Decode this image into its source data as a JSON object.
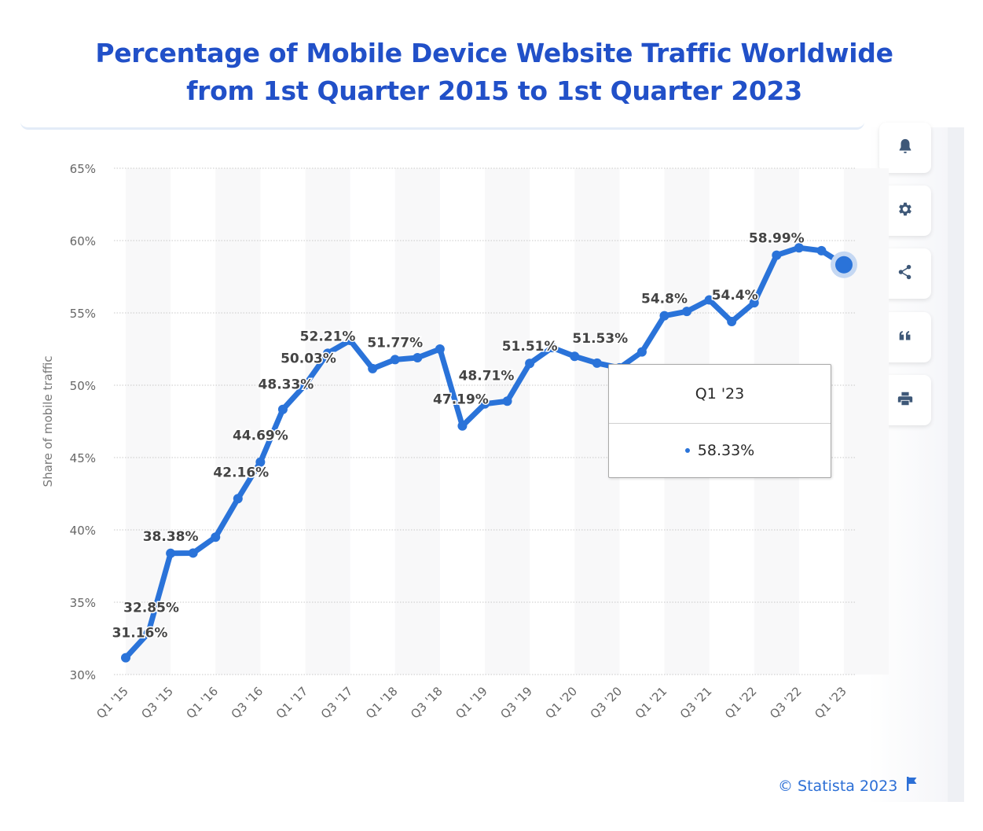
{
  "title_lines": [
    "Percentage of Mobile Device Website Traffic Worldwide",
    "from 1st Quarter 2015 to 1st Quarter 2023"
  ],
  "colors": {
    "title": "#2150c8",
    "series": "#2a73d9",
    "axis_text": "#666666",
    "data_label": "#444444",
    "link": "#2c6fd6"
  },
  "side_buttons": [
    {
      "name": "notification",
      "icon": "bell-icon"
    },
    {
      "name": "settings",
      "icon": "gear-icon"
    },
    {
      "name": "share",
      "icon": "share-icon"
    },
    {
      "name": "cite",
      "icon": "quote-icon"
    },
    {
      "name": "print",
      "icon": "printer-icon"
    }
  ],
  "footer": {
    "copyright": "© Statista 2023",
    "flag_icon": "flag-icon"
  },
  "tooltip": {
    "category": "Q1 '23",
    "value": "58.33%"
  },
  "chart_data": {
    "type": "line",
    "title": "Percentage of Mobile Device Website Traffic Worldwide from 1st Quarter 2015 to 1st Quarter 2023",
    "xlabel": "",
    "ylabel": "Share of mobile traffic",
    "ylim": [
      30,
      65
    ],
    "yticks": [
      30,
      35,
      40,
      45,
      50,
      55,
      60,
      65
    ],
    "ytick_labels": [
      "30%",
      "35%",
      "40%",
      "45%",
      "50%",
      "55%",
      "60%",
      "65%"
    ],
    "grid": true,
    "legend": "none",
    "categories": [
      "Q1 '15",
      "Q2 '15",
      "Q3 '15",
      "Q4 '15",
      "Q1 '16",
      "Q2 '16",
      "Q3 '16",
      "Q4 '16",
      "Q1 '17",
      "Q2 '17",
      "Q3 '17",
      "Q4 '17",
      "Q1 '18",
      "Q2 '18",
      "Q3 '18",
      "Q4 '18",
      "Q1 '19",
      "Q2 '19",
      "Q3 '19",
      "Q4 '19",
      "Q1 '20",
      "Q2 '20",
      "Q3 '20",
      "Q4 '20",
      "Q1 '21",
      "Q2 '21",
      "Q3 '21",
      "Q4 '21",
      "Q1 '22",
      "Q2 '22",
      "Q3 '22",
      "Q4 '22",
      "Q1 '23"
    ],
    "xtick_labels": [
      "Q1 '15",
      "Q3 '15",
      "Q1 '16",
      "Q3 '16",
      "Q1 '17",
      "Q3 '17",
      "Q1 '18",
      "Q3 '18",
      "Q1 '19",
      "Q3 '19",
      "Q1 '20",
      "Q3 '20",
      "Q1 '21",
      "Q3 '21",
      "Q1 '22",
      "Q3 '22",
      "Q1 '23"
    ],
    "series": [
      {
        "name": "Share of mobile traffic",
        "values": [
          31.16,
          32.85,
          38.38,
          38.4,
          39.5,
          42.16,
          44.69,
          48.33,
          50.03,
          52.21,
          53.1,
          51.15,
          51.77,
          51.9,
          52.5,
          47.19,
          48.71,
          48.9,
          51.51,
          52.6,
          52.0,
          51.53,
          51.2,
          52.3,
          54.8,
          55.1,
          55.9,
          54.4,
          55.7,
          58.99,
          59.5,
          59.3,
          58.33
        ]
      }
    ],
    "data_labels": [
      {
        "index": 0,
        "text": "31.16%"
      },
      {
        "index": 1,
        "text": "32.85%"
      },
      {
        "index": 2,
        "text": "38.38%"
      },
      {
        "index": 5,
        "text": "42.16%"
      },
      {
        "index": 6,
        "text": "44.69%"
      },
      {
        "index": 7,
        "text": "48.33%"
      },
      {
        "index": 8,
        "text": "50.03%"
      },
      {
        "index": 9,
        "text": "52.21%"
      },
      {
        "index": 12,
        "text": "51.77%"
      },
      {
        "index": 15,
        "text": "47.19%"
      },
      {
        "index": 16,
        "text": "48.71%"
      },
      {
        "index": 18,
        "text": "51.51%"
      },
      {
        "index": 21,
        "text": "51.53%"
      },
      {
        "index": 24,
        "text": "54.8%"
      },
      {
        "index": 27,
        "text": "54.4%"
      },
      {
        "index": 29,
        "text": "58.99%"
      }
    ],
    "highlighted_index": 32
  }
}
